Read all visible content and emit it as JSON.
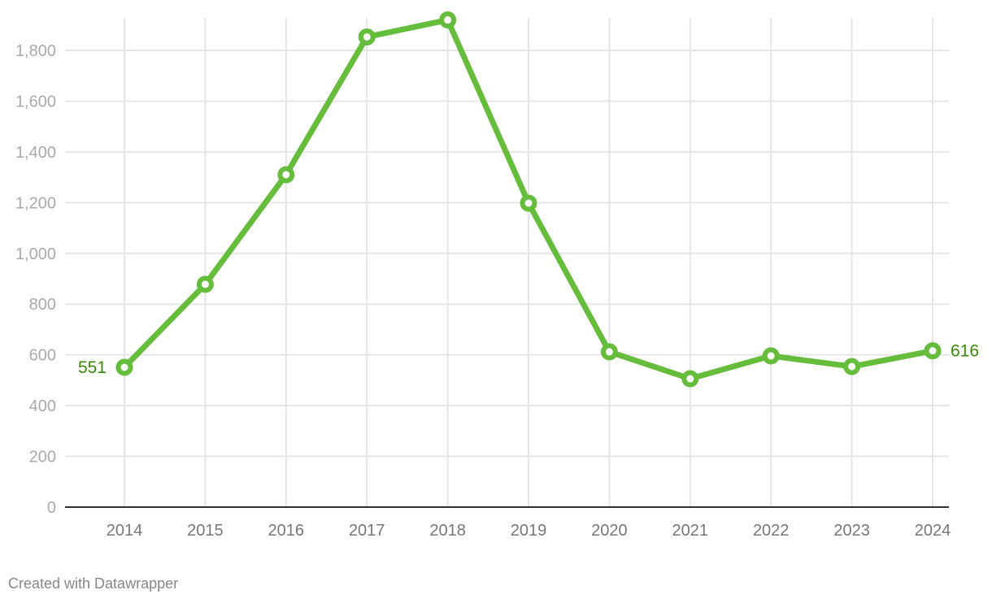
{
  "chart_data": {
    "type": "line",
    "title": "",
    "xlabel": "",
    "ylabel": "",
    "categories": [
      "2014",
      "2015",
      "2016",
      "2017",
      "2018",
      "2019",
      "2020",
      "2021",
      "2022",
      "2023",
      "2024"
    ],
    "series": [
      {
        "values": [
          551,
          878,
          1310,
          1853,
          1920,
          1198,
          612,
          506,
          596,
          554,
          616
        ],
        "color": "#65bd3b"
      }
    ],
    "ylim": [
      0,
      1900
    ],
    "yticks": [
      0,
      200,
      400,
      600,
      800,
      1000,
      1200,
      1400,
      1600,
      1800
    ],
    "ytick_labels": [
      "0",
      "200",
      "400",
      "600",
      "800",
      "1,000",
      "1,200",
      "1,400",
      "1,600",
      "1,800"
    ],
    "grid": true,
    "end_labels": {
      "first": "551",
      "last": "616",
      "color": "#3a8a0a"
    }
  },
  "footer": {
    "credit": "Created with Datawrapper"
  }
}
